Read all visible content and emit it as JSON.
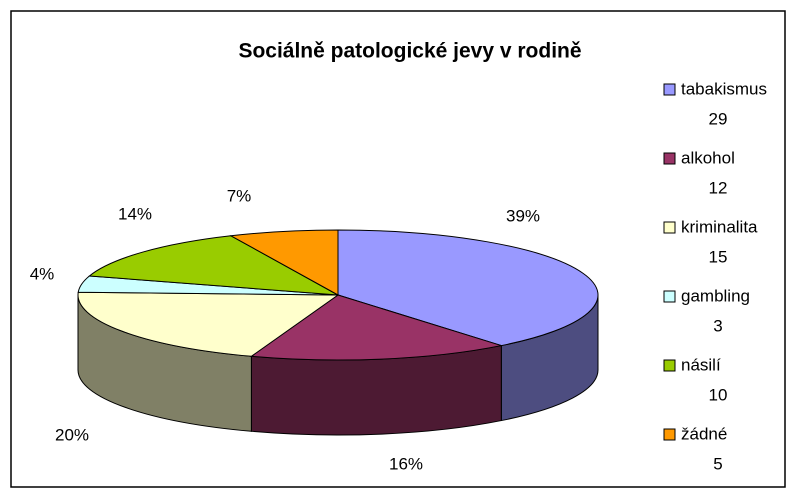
{
  "chart_data": {
    "type": "pie3d",
    "title": "Sociálně patologické jevy v rodině",
    "categories": [
      "tabakismus",
      "alkohol",
      "kriminalita",
      "gambling",
      "násilí",
      "žádné"
    ],
    "values": [
      29,
      12,
      15,
      3,
      10,
      5
    ],
    "value_labels": [
      "39%",
      "16%",
      "20%",
      "4%",
      "14%",
      "7%"
    ],
    "colors": [
      "#9999ff",
      "#993366",
      "#ffffcc",
      "#ccffff",
      "#99cc00",
      "#ff9900"
    ],
    "legend": "right"
  }
}
